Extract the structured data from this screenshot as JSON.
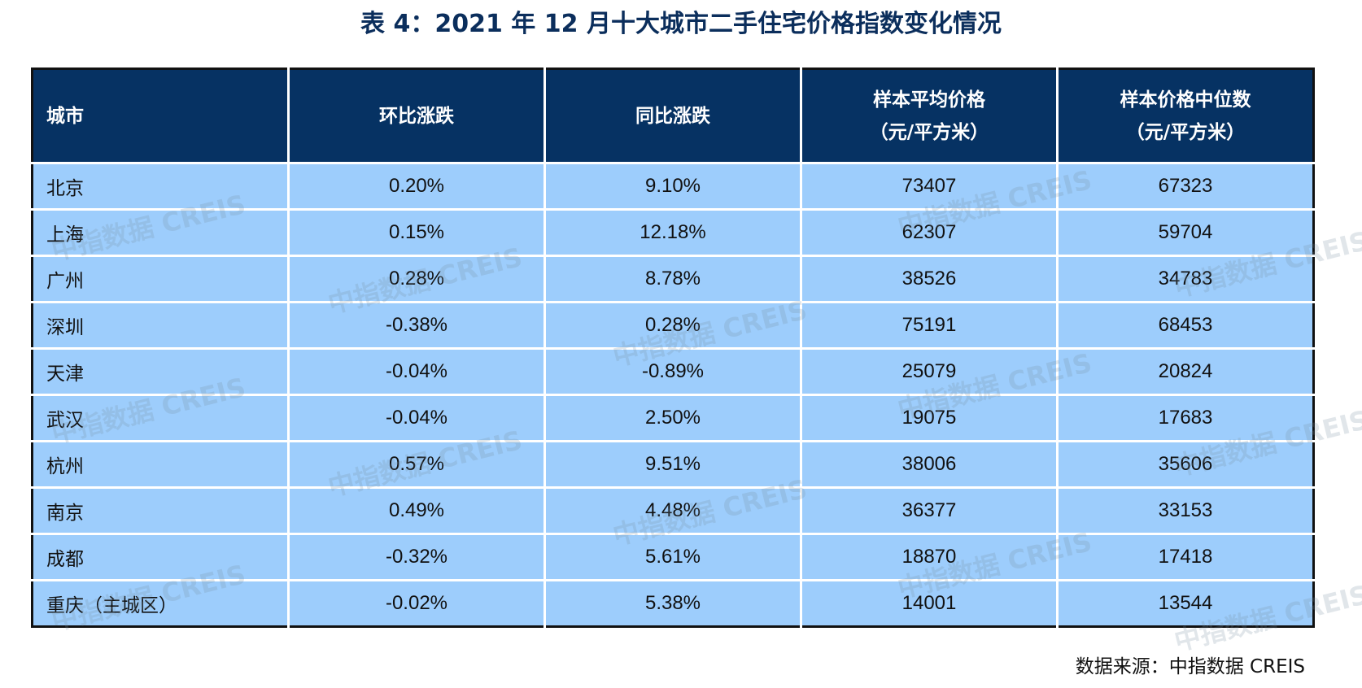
{
  "title": "表 4：2021 年 12 月十大城市二手住宅价格指数变化情况",
  "table": {
    "headers": [
      {
        "line1": "城市",
        "line2": ""
      },
      {
        "line1": "环比涨跌",
        "line2": ""
      },
      {
        "line1": "同比涨跌",
        "line2": ""
      },
      {
        "line1": "样本平均价格",
        "line2": "（元/平方米）"
      },
      {
        "line1": "样本价格中位数",
        "line2": "（元/平方米）"
      }
    ],
    "rows": [
      [
        "北京",
        "0.20%",
        "9.10%",
        "73407",
        "67323"
      ],
      [
        "上海",
        "0.15%",
        "12.18%",
        "62307",
        "59704"
      ],
      [
        "广州",
        "0.28%",
        "8.78%",
        "38526",
        "34783"
      ],
      [
        "深圳",
        "-0.38%",
        "0.28%",
        "75191",
        "68453"
      ],
      [
        "天津",
        "-0.04%",
        "-0.89%",
        "25079",
        "20824"
      ],
      [
        "武汉",
        "-0.04%",
        "2.50%",
        "19075",
        "17683"
      ],
      [
        "杭州",
        "0.57%",
        "9.51%",
        "38006",
        "35606"
      ],
      [
        "南京",
        "0.49%",
        "4.48%",
        "36377",
        "33153"
      ],
      [
        "成都",
        "-0.32%",
        "5.61%",
        "18870",
        "17418"
      ],
      [
        "重庆（主城区）",
        "-0.02%",
        "5.38%",
        "14001",
        "13544"
      ]
    ]
  },
  "source": "数据来源：中指数据  CREIS",
  "watermark": "中指数据 CREIS",
  "colors": {
    "header_bg": "#063263",
    "row_bg": "#9dcdfc",
    "title": "#0b2e5c"
  }
}
